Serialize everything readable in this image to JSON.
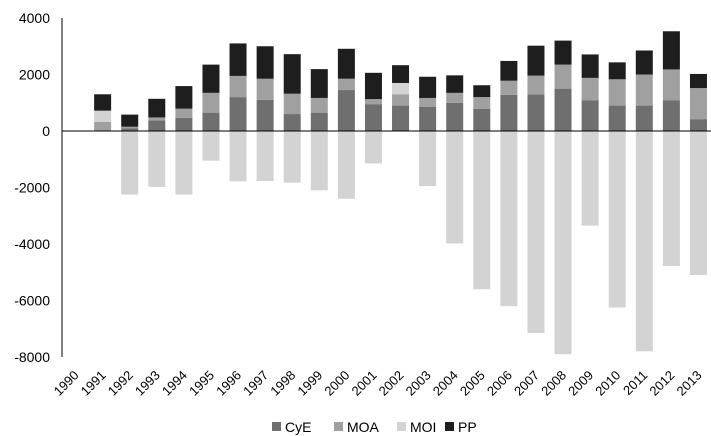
{
  "chart_data": {
    "type": "bar",
    "stacked": true,
    "categories": [
      "1990",
      "1991",
      "1992",
      "1993",
      "1994",
      "1995",
      "1996",
      "1997",
      "1998",
      "1999",
      "2000",
      "2001",
      "2002",
      "2003",
      "2004",
      "2005",
      "2006",
      "2007",
      "2008",
      "2009",
      "2010",
      "2011",
      "2012",
      "2013"
    ],
    "series": [
      {
        "name": "CyE",
        "color": "#6f6f6f",
        "values": [
          0,
          0,
          100,
          380,
          470,
          650,
          1200,
          1100,
          600,
          650,
          1450,
          950,
          900,
          850,
          1000,
          780,
          1280,
          1300,
          1500,
          1080,
          900,
          900,
          1080,
          420
        ]
      },
      {
        "name": "MOA",
        "color": "#a0a0a0",
        "values": [
          0,
          320,
          50,
          100,
          320,
          700,
          750,
          750,
          720,
          520,
          400,
          180,
          400,
          320,
          350,
          420,
          500,
          660,
          850,
          800,
          930,
          1100,
          1100,
          1100
        ]
      },
      {
        "name": "MOI",
        "color": "#d3d3d3",
        "values": [
          0,
          400,
          -2250,
          -1980,
          -2250,
          -1050,
          -1780,
          -1770,
          -1830,
          -2100,
          -2400,
          -1150,
          400,
          -1950,
          -3980,
          -5600,
          -6200,
          -7150,
          -7900,
          -3350,
          -6250,
          -7800,
          -4780,
          -5100
        ]
      },
      {
        "name": "PP",
        "color": "#1e1e1e",
        "values": [
          0,
          580,
          430,
          660,
          800,
          1000,
          1150,
          1150,
          1400,
          1020,
          1060,
          930,
          630,
          750,
          620,
          420,
          700,
          1060,
          850,
          830,
          600,
          850,
          1350,
          500
        ]
      }
    ],
    "yticks": [
      "4000",
      "2000",
      "0",
      "-2000",
      "-4000",
      "-6000",
      "-8000"
    ],
    "ylim": [
      -8000,
      4000
    ],
    "legend_position": "bottom",
    "grid": false
  }
}
